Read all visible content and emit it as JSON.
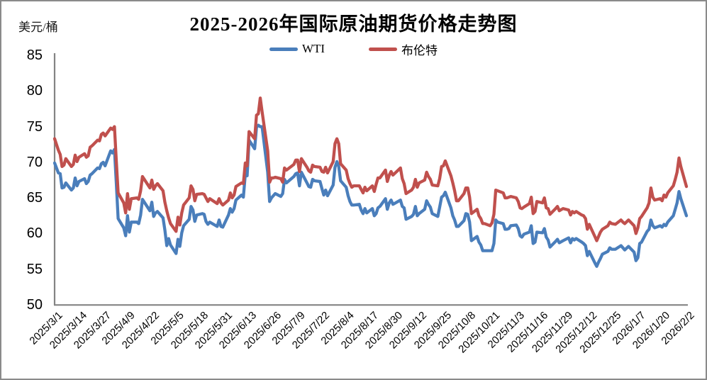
{
  "window": {
    "background": "#ffffff",
    "border_color": "#8a8a8a"
  },
  "header": {
    "title": "2025-2026年国际原油期货价格走势图",
    "unit_label": "美元/桶"
  },
  "legend": {
    "items": [
      {
        "label": "WTI",
        "color": "#4A7EBB"
      },
      {
        "label": "布伦特",
        "color": "#C0504D"
      }
    ]
  },
  "axis": {
    "line_color": "#848484",
    "tick_label_color": "#000000"
  },
  "chart_data": {
    "type": "line",
    "title": "2025-2026年国际原油期货价格走势图",
    "ylabel": "美元/桶",
    "xlabel": "",
    "ylim": [
      50,
      85
    ],
    "yticks": [
      85,
      80,
      75,
      70,
      65,
      60,
      55,
      50
    ],
    "grid": false,
    "legend_position": "top-center",
    "x_range": [
      "2025/3/1",
      "2026/2/2"
    ],
    "x_tick_labels": [
      "2025/3/1",
      "2025/3/14",
      "2025/3/27",
      "2025/4/9",
      "2025/4/22",
      "2025/5/5",
      "2025/5/18",
      "2025/5/31",
      "2025/6/13",
      "2025/6/26",
      "2025/7/9",
      "2025/7/22",
      "2025/8/4",
      "2025/8/17",
      "2025/8/30",
      "2025/9/12",
      "2025/9/25",
      "2025/10/8",
      "2025/10/21",
      "2025/11/3",
      "2025/11/16",
      "2025/11/29",
      "2025/12/12",
      "2025/12/25",
      "2026/1/7",
      "2026/1/20",
      "2026/2/2"
    ],
    "dates": [
      "2025/3/1",
      "2025/3/3",
      "2025/3/4",
      "2025/3/5",
      "2025/3/6",
      "2025/3/7",
      "2025/3/10",
      "2025/3/11",
      "2025/3/12",
      "2025/3/13",
      "2025/3/14",
      "2025/3/17",
      "2025/3/18",
      "2025/3/19",
      "2025/3/20",
      "2025/3/21",
      "2025/3/24",
      "2025/3/25",
      "2025/3/26",
      "2025/3/27",
      "2025/3/28",
      "2025/3/31",
      "2025/4/1",
      "2025/4/2",
      "2025/4/3",
      "2025/4/4",
      "2025/4/7",
      "2025/4/8",
      "2025/4/9",
      "2025/4/10",
      "2025/4/11",
      "2025/4/14",
      "2025/4/15",
      "2025/4/16",
      "2025/4/17",
      "2025/4/21",
      "2025/4/22",
      "2025/4/23",
      "2025/4/24",
      "2025/4/25",
      "2025/4/28",
      "2025/4/29",
      "2025/4/30",
      "2025/5/1",
      "2025/5/2",
      "2025/5/5",
      "2025/5/6",
      "2025/5/7",
      "2025/5/8",
      "2025/5/9",
      "2025/5/12",
      "2025/5/13",
      "2025/5/14",
      "2025/5/15",
      "2025/5/16",
      "2025/5/19",
      "2025/5/20",
      "2025/5/21",
      "2025/5/22",
      "2025/5/23",
      "2025/5/27",
      "2025/5/28",
      "2025/5/29",
      "2025/5/30",
      "2025/6/2",
      "2025/6/3",
      "2025/6/4",
      "2025/6/5",
      "2025/6/6",
      "2025/6/9",
      "2025/6/10",
      "2025/6/11",
      "2025/6/12",
      "2025/6/13",
      "2025/6/16",
      "2025/6/17",
      "2025/6/18",
      "2025/6/19",
      "2025/6/20",
      "2025/6/23",
      "2025/6/24",
      "2025/6/25",
      "2025/6/26",
      "2025/6/27",
      "2025/6/30",
      "2025/7/1",
      "2025/7/2",
      "2025/7/3",
      "2025/7/7",
      "2025/7/8",
      "2025/7/9",
      "2025/7/10",
      "2025/7/11",
      "2025/7/14",
      "2025/7/15",
      "2025/7/16",
      "2025/7/17",
      "2025/7/18",
      "2025/7/21",
      "2025/7/22",
      "2025/7/23",
      "2025/7/24",
      "2025/7/25",
      "2025/7/28",
      "2025/7/29",
      "2025/7/30",
      "2025/7/31",
      "2025/8/1",
      "2025/8/4",
      "2025/8/5",
      "2025/8/6",
      "2025/8/7",
      "2025/8/8",
      "2025/8/11",
      "2025/8/12",
      "2025/8/13",
      "2025/8/14",
      "2025/8/15",
      "2025/8/18",
      "2025/8/19",
      "2025/8/20",
      "2025/8/21",
      "2025/8/22",
      "2025/8/25",
      "2025/8/26",
      "2025/8/27",
      "2025/8/28",
      "2025/8/29",
      "2025/9/2",
      "2025/9/3",
      "2025/9/4",
      "2025/9/5",
      "2025/9/8",
      "2025/9/9",
      "2025/9/10",
      "2025/9/11",
      "2025/9/12",
      "2025/9/15",
      "2025/9/16",
      "2025/9/17",
      "2025/9/18",
      "2025/9/19",
      "2025/9/22",
      "2025/9/23",
      "2025/9/24",
      "2025/9/25",
      "2025/9/26",
      "2025/9/29",
      "2025/9/30",
      "2025/10/1",
      "2025/10/2",
      "2025/10/3",
      "2025/10/6",
      "2025/10/7",
      "2025/10/8",
      "2025/10/9",
      "2025/10/10",
      "2025/10/13",
      "2025/10/14",
      "2025/10/15",
      "2025/10/16",
      "2025/10/17",
      "2025/10/20",
      "2025/10/21",
      "2025/10/22",
      "2025/10/23",
      "2025/10/24",
      "2025/10/27",
      "2025/10/28",
      "2025/10/29",
      "2025/10/30",
      "2025/10/31",
      "2025/11/3",
      "2025/11/4",
      "2025/11/5",
      "2025/11/6",
      "2025/11/7",
      "2025/11/10",
      "2025/11/11",
      "2025/11/12",
      "2025/11/13",
      "2025/11/14",
      "2025/11/17",
      "2025/11/18",
      "2025/11/19",
      "2025/11/20",
      "2025/11/21",
      "2025/11/24",
      "2025/11/25",
      "2025/11/26",
      "2025/11/28",
      "2025/12/1",
      "2025/12/2",
      "2025/12/3",
      "2025/12/4",
      "2025/12/5",
      "2025/12/8",
      "2025/12/9",
      "2025/12/10",
      "2025/12/11",
      "2025/12/12",
      "2025/12/15",
      "2025/12/16",
      "2025/12/17",
      "2025/12/18",
      "2025/12/19",
      "2025/12/22",
      "2025/12/23",
      "2025/12/24",
      "2025/12/26",
      "2025/12/29",
      "2025/12/30",
      "2025/12/31",
      "2026/1/2",
      "2026/1/5",
      "2026/1/6",
      "2026/1/7",
      "2026/1/8",
      "2026/1/9",
      "2026/1/12",
      "2026/1/13",
      "2026/1/14",
      "2026/1/15",
      "2026/1/16",
      "2026/1/19",
      "2026/1/20",
      "2026/1/21",
      "2026/1/22",
      "2026/1/23",
      "2026/1/26",
      "2026/1/27",
      "2026/1/28",
      "2026/1/29",
      "2026/1/30",
      "2026/2/2"
    ],
    "series": [
      {
        "name": "WTI",
        "color": "#4A7EBB",
        "values": [
          69.8,
          68.4,
          68.3,
          66.3,
          66.4,
          67.0,
          66.0,
          66.3,
          67.7,
          66.6,
          67.2,
          67.6,
          66.9,
          67.2,
          68.1,
          68.3,
          69.1,
          69.0,
          69.7,
          69.9,
          69.4,
          71.5,
          71.2,
          71.7,
          67.0,
          62.0,
          60.7,
          59.6,
          62.4,
          60.1,
          61.5,
          61.5,
          61.3,
          62.5,
          64.7,
          63.1,
          64.3,
          62.3,
          62.8,
          63.0,
          62.1,
          60.4,
          58.2,
          59.2,
          58.3,
          57.1,
          59.1,
          58.1,
          60.0,
          61.0,
          61.9,
          63.7,
          63.2,
          61.6,
          62.5,
          62.7,
          62.6,
          61.6,
          61.2,
          61.5,
          60.9,
          61.8,
          60.9,
          60.8,
          62.5,
          63.4,
          62.9,
          63.4,
          64.6,
          65.3,
          65.0,
          68.2,
          68.0,
          73.0,
          71.8,
          74.8,
          75.1,
          74.9,
          74.9,
          68.5,
          64.4,
          64.9,
          65.2,
          65.5,
          65.1,
          65.5,
          67.5,
          67.0,
          67.9,
          68.3,
          68.4,
          66.6,
          68.5,
          67.0,
          66.5,
          66.4,
          67.5,
          67.3,
          67.2,
          66.2,
          65.3,
          66.0,
          65.2,
          66.7,
          69.2,
          70.0,
          69.3,
          67.3,
          66.4,
          65.2,
          64.4,
          63.9,
          63.9,
          64.0,
          63.2,
          62.7,
          63.4,
          62.8,
          63.4,
          62.4,
          62.7,
          63.5,
          63.7,
          64.8,
          63.3,
          64.2,
          64.6,
          64.0,
          64.6,
          63.7,
          63.5,
          61.9,
          62.3,
          62.6,
          63.7,
          62.4,
          62.7,
          63.3,
          64.5,
          64.0,
          63.6,
          62.7,
          62.3,
          63.6,
          65.0,
          65.2,
          65.7,
          63.5,
          62.4,
          61.8,
          60.9,
          60.9,
          61.7,
          62.7,
          62.6,
          61.5,
          58.9,
          59.5,
          58.7,
          58.3,
          57.5,
          57.5,
          57.5,
          57.5,
          58.5,
          61.8,
          61.5,
          61.3,
          60.5,
          60.5,
          60.6,
          61.0,
          61.1,
          60.6,
          59.6,
          59.4,
          59.8,
          60.1,
          61.0,
          58.5,
          58.7,
          60.1,
          60.0,
          60.6,
          59.4,
          59.0,
          58.0,
          58.8,
          59.1,
          58.6,
          58.9,
          59.3,
          58.6,
          59.2,
          59.0,
          59.2,
          58.7,
          58.5,
          58.2,
          56.8,
          57.4,
          55.8,
          55.3,
          55.9,
          56.4,
          57.0,
          57.4,
          57.9,
          57.7,
          57.7,
          58.2,
          57.9,
          57.6,
          58.1,
          57.3,
          56.1,
          56.5,
          58.5,
          58.7,
          60.2,
          60.5,
          61.8,
          61.0,
          60.7,
          61.0,
          60.8,
          61.2,
          61.0,
          61.5,
          62.4,
          63.3,
          64.2,
          65.8,
          64.8,
          62.4
        ]
      },
      {
        "name": "布伦特",
        "color": "#C0504D",
        "values": [
          73.2,
          71.6,
          71.0,
          69.3,
          69.5,
          70.4,
          69.3,
          69.6,
          70.9,
          70.0,
          70.6,
          71.1,
          70.6,
          70.8,
          72.0,
          72.2,
          73.0,
          72.9,
          73.8,
          74.0,
          73.6,
          74.7,
          74.5,
          74.9,
          70.1,
          65.6,
          64.2,
          62.8,
          65.5,
          63.3,
          64.8,
          64.9,
          64.7,
          65.9,
          67.9,
          66.3,
          67.4,
          66.1,
          66.6,
          66.9,
          65.9,
          64.3,
          63.1,
          62.1,
          61.3,
          60.2,
          62.2,
          61.1,
          62.8,
          63.9,
          64.9,
          66.6,
          66.1,
          64.5,
          65.4,
          65.5,
          65.4,
          64.9,
          64.4,
          64.8,
          64.1,
          64.8,
          64.2,
          63.9,
          64.6,
          65.6,
          64.9,
          65.3,
          66.5,
          67.0,
          66.9,
          69.8,
          69.4,
          74.2,
          73.2,
          76.5,
          76.7,
          78.9,
          77.0,
          71.5,
          67.1,
          67.7,
          67.7,
          67.8,
          67.6,
          67.1,
          69.1,
          68.8,
          69.6,
          70.2,
          70.2,
          68.6,
          70.4,
          69.2,
          68.7,
          68.5,
          69.5,
          69.3,
          69.2,
          68.6,
          68.5,
          69.2,
          68.4,
          70.0,
          72.5,
          73.2,
          72.5,
          69.7,
          68.8,
          67.6,
          66.9,
          66.4,
          66.6,
          66.6,
          66.1,
          65.6,
          66.4,
          65.9,
          66.6,
          65.8,
          66.8,
          67.7,
          67.7,
          68.8,
          67.2,
          68.1,
          68.6,
          68.1,
          69.1,
          67.6,
          66.9,
          65.5,
          66.0,
          66.4,
          67.5,
          66.4,
          67.0,
          67.4,
          68.5,
          67.9,
          67.5,
          66.7,
          66.6,
          67.6,
          69.3,
          69.4,
          70.1,
          68.0,
          67.0,
          65.9,
          64.5,
          64.5,
          65.5,
          66.3,
          66.3,
          65.0,
          62.7,
          63.3,
          62.4,
          62.0,
          61.3,
          61.3,
          61.0,
          61.4,
          62.6,
          66.0,
          65.9,
          65.6,
          64.9,
          64.9,
          65.0,
          65.1,
          64.9,
          64.4,
          63.5,
          63.4,
          63.6,
          64.1,
          65.0,
          62.7,
          63.0,
          64.4,
          64.2,
          64.9,
          63.5,
          63.4,
          62.6,
          63.4,
          63.7,
          63.1,
          63.4,
          63.2,
          62.5,
          63.0,
          62.8,
          63.0,
          62.5,
          62.4,
          62.0,
          60.5,
          61.2,
          59.5,
          58.9,
          59.5,
          60.1,
          60.5,
          61.0,
          61.5,
          61.3,
          61.2,
          61.8,
          61.5,
          61.3,
          61.8,
          61.0,
          59.9,
          60.7,
          62.0,
          62.3,
          63.5,
          64.2,
          66.3,
          65.0,
          64.6,
          64.8,
          64.5,
          65.3,
          65.0,
          65.6,
          66.6,
          67.5,
          68.5,
          70.5,
          69.3,
          66.5
        ]
      }
    ]
  }
}
